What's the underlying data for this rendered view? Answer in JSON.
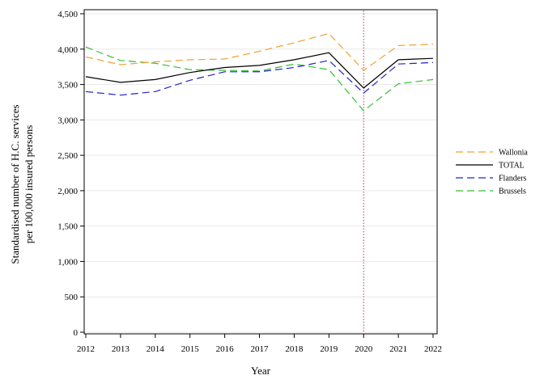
{
  "chart_data": {
    "type": "line",
    "title": "",
    "xlabel": "Year",
    "ylabel_lines": [
      "Standardised number of H.C. services",
      "per 100,000 insured persons"
    ],
    "x": [
      2012,
      2013,
      2014,
      2015,
      2016,
      2017,
      2018,
      2019,
      2020,
      2021,
      2022
    ],
    "x_tick_labels": [
      "2012",
      "2013",
      "2014",
      "2015",
      "2016",
      "2017",
      "2018",
      "2019",
      "2020",
      "2021",
      "2022"
    ],
    "ylim": [
      0,
      4500
    ],
    "y_ticks": [
      0,
      500,
      1000,
      1500,
      2000,
      2500,
      3000,
      3500,
      4000,
      4500
    ],
    "y_tick_labels": [
      "0",
      "500",
      "1,000",
      "1,500",
      "2,000",
      "2,500",
      "3,000",
      "3,500",
      "4,000",
      "4,500"
    ],
    "grid": "horizontal",
    "legend_position": "right",
    "reference_line": {
      "x": 2020,
      "color": "#c0304f",
      "style": "dotted"
    },
    "series": [
      {
        "name": "Wallonia",
        "color": "#f0a030",
        "dash": "dashed",
        "values": [
          3890,
          3780,
          3820,
          3850,
          3860,
          3970,
          4090,
          4220,
          3700,
          4050,
          4070
        ]
      },
      {
        "name": "TOTAL",
        "color": "#000000",
        "dash": "solid",
        "values": [
          3610,
          3530,
          3570,
          3670,
          3740,
          3770,
          3850,
          3950,
          3450,
          3850,
          3870
        ]
      },
      {
        "name": "Flanders",
        "color": "#2020d0",
        "dash": "dashed",
        "values": [
          3400,
          3350,
          3400,
          3560,
          3680,
          3680,
          3740,
          3840,
          3380,
          3790,
          3810
        ]
      },
      {
        "name": "Brussels",
        "color": "#30c030",
        "dash": "dashed",
        "values": [
          4030,
          3840,
          3800,
          3710,
          3700,
          3690,
          3790,
          3710,
          3130,
          3510,
          3570
        ]
      }
    ]
  }
}
